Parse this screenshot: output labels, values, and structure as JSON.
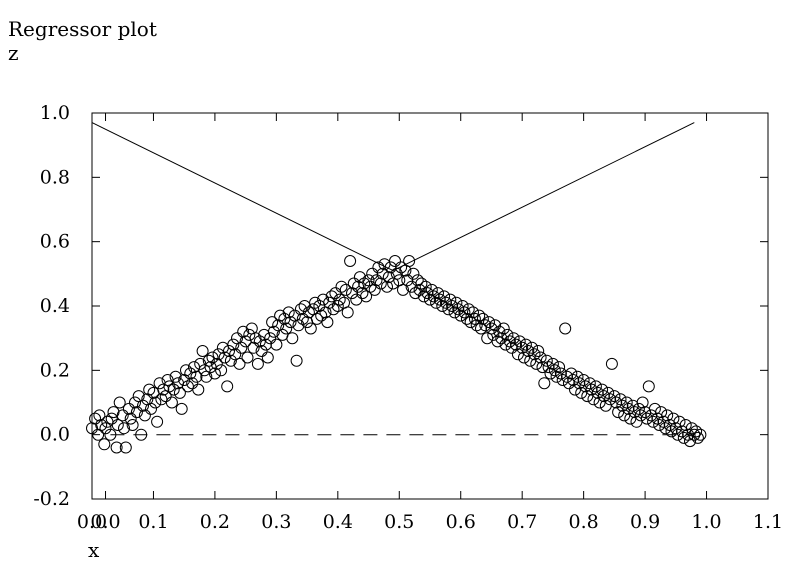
{
  "chart_data": {
    "type": "scatter",
    "title": "Regressor plot",
    "ylabel": "z",
    "xlabel": "x",
    "xlim": [
      -0.0,
      1.1
    ],
    "ylim": [
      -0.2,
      1.0
    ],
    "x_tick_labels": [
      "0.0",
      "0.0",
      "0.1",
      "0.2",
      "0.3",
      "0.4",
      "0.5",
      "0.6",
      "0.7",
      "0.8",
      "0.9",
      "1.0",
      "1.1"
    ],
    "y_tick_labels": [
      "1.0",
      "0.8",
      "0.6",
      "0.4",
      "0.2",
      "0.0",
      "-0.2"
    ],
    "grid": false,
    "lines": [
      {
        "style": "solid",
        "points": [
          [
            0.0,
            0.97
          ],
          [
            0.49,
            0.51
          ],
          [
            0.98,
            0.97
          ]
        ]
      },
      {
        "style": "dashed",
        "points": [
          [
            0.03,
            0.0
          ],
          [
            0.98,
            0.0
          ]
        ]
      }
    ],
    "scatter_description": "Dense cloud of open circles following an inverted-V from (0,0) up to about (0.48,0.48) and back down to (0.98,0.0)",
    "points": [
      [
        0.0,
        0.02
      ],
      [
        0.005,
        0.05
      ],
      [
        0.01,
        0.0
      ],
      [
        0.012,
        0.06
      ],
      [
        0.015,
        0.03
      ],
      [
        0.02,
        -0.03
      ],
      [
        0.022,
        0.02
      ],
      [
        0.025,
        0.04
      ],
      [
        0.03,
        0.0
      ],
      [
        0.032,
        0.05
      ],
      [
        0.035,
        0.07
      ],
      [
        0.04,
        -0.04
      ],
      [
        0.042,
        0.03
      ],
      [
        0.045,
        0.1
      ],
      [
        0.05,
        0.06
      ],
      [
        0.052,
        0.02
      ],
      [
        0.055,
        -0.04
      ],
      [
        0.06,
        0.08
      ],
      [
        0.063,
        0.05
      ],
      [
        0.066,
        0.03
      ],
      [
        0.07,
        0.1
      ],
      [
        0.073,
        0.07
      ],
      [
        0.076,
        0.12
      ],
      [
        0.08,
        0.0
      ],
      [
        0.083,
        0.09
      ],
      [
        0.086,
        0.06
      ],
      [
        0.09,
        0.11
      ],
      [
        0.093,
        0.14
      ],
      [
        0.096,
        0.08
      ],
      [
        0.1,
        0.13
      ],
      [
        0.103,
        0.1
      ],
      [
        0.106,
        0.04
      ],
      [
        0.11,
        0.16
      ],
      [
        0.113,
        0.11
      ],
      [
        0.116,
        0.14
      ],
      [
        0.12,
        0.12
      ],
      [
        0.123,
        0.17
      ],
      [
        0.126,
        0.15
      ],
      [
        0.13,
        0.1
      ],
      [
        0.133,
        0.14
      ],
      [
        0.136,
        0.18
      ],
      [
        0.14,
        0.16
      ],
      [
        0.143,
        0.13
      ],
      [
        0.146,
        0.08
      ],
      [
        0.15,
        0.17
      ],
      [
        0.153,
        0.2
      ],
      [
        0.156,
        0.15
      ],
      [
        0.16,
        0.19
      ],
      [
        0.163,
        0.16
      ],
      [
        0.166,
        0.21
      ],
      [
        0.17,
        0.18
      ],
      [
        0.173,
        0.14
      ],
      [
        0.176,
        0.22
      ],
      [
        0.18,
        0.26
      ],
      [
        0.183,
        0.2
      ],
      [
        0.186,
        0.18
      ],
      [
        0.19,
        0.23
      ],
      [
        0.193,
        0.21
      ],
      [
        0.196,
        0.24
      ],
      [
        0.2,
        0.19
      ],
      [
        0.203,
        0.22
      ],
      [
        0.206,
        0.25
      ],
      [
        0.21,
        0.2
      ],
      [
        0.213,
        0.27
      ],
      [
        0.216,
        0.24
      ],
      [
        0.22,
        0.15
      ],
      [
        0.223,
        0.26
      ],
      [
        0.226,
        0.23
      ],
      [
        0.23,
        0.28
      ],
      [
        0.233,
        0.25
      ],
      [
        0.236,
        0.3
      ],
      [
        0.24,
        0.22
      ],
      [
        0.243,
        0.27
      ],
      [
        0.246,
        0.32
      ],
      [
        0.25,
        0.29
      ],
      [
        0.253,
        0.24
      ],
      [
        0.256,
        0.31
      ],
      [
        0.26,
        0.33
      ],
      [
        0.263,
        0.27
      ],
      [
        0.266,
        0.3
      ],
      [
        0.27,
        0.22
      ],
      [
        0.273,
        0.29
      ],
      [
        0.276,
        0.26
      ],
      [
        0.28,
        0.31
      ],
      [
        0.283,
        0.28
      ],
      [
        0.286,
        0.24
      ],
      [
        0.29,
        0.3
      ],
      [
        0.293,
        0.35
      ],
      [
        0.296,
        0.32
      ],
      [
        0.3,
        0.28
      ],
      [
        0.303,
        0.34
      ],
      [
        0.306,
        0.37
      ],
      [
        0.31,
        0.31
      ],
      [
        0.313,
        0.36
      ],
      [
        0.316,
        0.33
      ],
      [
        0.32,
        0.38
      ],
      [
        0.323,
        0.35
      ],
      [
        0.326,
        0.3
      ],
      [
        0.33,
        0.37
      ],
      [
        0.333,
        0.23
      ],
      [
        0.336,
        0.34
      ],
      [
        0.34,
        0.39
      ],
      [
        0.343,
        0.36
      ],
      [
        0.346,
        0.4
      ],
      [
        0.35,
        0.35
      ],
      [
        0.353,
        0.38
      ],
      [
        0.356,
        0.33
      ],
      [
        0.36,
        0.39
      ],
      [
        0.363,
        0.41
      ],
      [
        0.366,
        0.36
      ],
      [
        0.37,
        0.4
      ],
      [
        0.373,
        0.37
      ],
      [
        0.376,
        0.42
      ],
      [
        0.38,
        0.38
      ],
      [
        0.383,
        0.35
      ],
      [
        0.386,
        0.41
      ],
      [
        0.39,
        0.43
      ],
      [
        0.393,
        0.39
      ],
      [
        0.396,
        0.44
      ],
      [
        0.4,
        0.4
      ],
      [
        0.403,
        0.42
      ],
      [
        0.406,
        0.46
      ],
      [
        0.41,
        0.41
      ],
      [
        0.413,
        0.45
      ],
      [
        0.416,
        0.38
      ],
      [
        0.42,
        0.54
      ],
      [
        0.423,
        0.44
      ],
      [
        0.426,
        0.47
      ],
      [
        0.43,
        0.42
      ],
      [
        0.433,
        0.46
      ],
      [
        0.436,
        0.49
      ],
      [
        0.44,
        0.44
      ],
      [
        0.443,
        0.47
      ],
      [
        0.446,
        0.43
      ],
      [
        0.45,
        0.48
      ],
      [
        0.453,
        0.46
      ],
      [
        0.456,
        0.5
      ],
      [
        0.46,
        0.45
      ],
      [
        0.463,
        0.48
      ],
      [
        0.466,
        0.52
      ],
      [
        0.47,
        0.47
      ],
      [
        0.473,
        0.5
      ],
      [
        0.476,
        0.53
      ],
      [
        0.48,
        0.46
      ],
      [
        0.483,
        0.49
      ],
      [
        0.486,
        0.52
      ],
      [
        0.49,
        0.47
      ],
      [
        0.493,
        0.54
      ],
      [
        0.496,
        0.5
      ],
      [
        0.5,
        0.48
      ],
      [
        0.503,
        0.52
      ],
      [
        0.506,
        0.45
      ],
      [
        0.51,
        0.51
      ],
      [
        0.513,
        0.48
      ],
      [
        0.516,
        0.54
      ],
      [
        0.52,
        0.46
      ],
      [
        0.523,
        0.5
      ],
      [
        0.526,
        0.44
      ],
      [
        0.53,
        0.48
      ],
      [
        0.533,
        0.45
      ],
      [
        0.536,
        0.47
      ],
      [
        0.54,
        0.43
      ],
      [
        0.543,
        0.46
      ],
      [
        0.546,
        0.44
      ],
      [
        0.55,
        0.42
      ],
      [
        0.553,
        0.45
      ],
      [
        0.556,
        0.43
      ],
      [
        0.56,
        0.41
      ],
      [
        0.563,
        0.44
      ],
      [
        0.566,
        0.42
      ],
      [
        0.57,
        0.4
      ],
      [
        0.573,
        0.43
      ],
      [
        0.576,
        0.41
      ],
      [
        0.58,
        0.39
      ],
      [
        0.583,
        0.42
      ],
      [
        0.586,
        0.4
      ],
      [
        0.59,
        0.38
      ],
      [
        0.593,
        0.41
      ],
      [
        0.596,
        0.39
      ],
      [
        0.6,
        0.37
      ],
      [
        0.603,
        0.4
      ],
      [
        0.606,
        0.38
      ],
      [
        0.61,
        0.36
      ],
      [
        0.613,
        0.39
      ],
      [
        0.616,
        0.35
      ],
      [
        0.62,
        0.38
      ],
      [
        0.623,
        0.36
      ],
      [
        0.626,
        0.34
      ],
      [
        0.63,
        0.37
      ],
      [
        0.633,
        0.33
      ],
      [
        0.636,
        0.36
      ],
      [
        0.64,
        0.34
      ],
      [
        0.643,
        0.3
      ],
      [
        0.646,
        0.35
      ],
      [
        0.65,
        0.33
      ],
      [
        0.653,
        0.31
      ],
      [
        0.656,
        0.34
      ],
      [
        0.66,
        0.29
      ],
      [
        0.663,
        0.32
      ],
      [
        0.666,
        0.3
      ],
      [
        0.67,
        0.33
      ],
      [
        0.673,
        0.28
      ],
      [
        0.676,
        0.31
      ],
      [
        0.68,
        0.29
      ],
      [
        0.683,
        0.27
      ],
      [
        0.686,
        0.3
      ],
      [
        0.69,
        0.28
      ],
      [
        0.693,
        0.25
      ],
      [
        0.696,
        0.29
      ],
      [
        0.7,
        0.27
      ],
      [
        0.703,
        0.24
      ],
      [
        0.706,
        0.28
      ],
      [
        0.71,
        0.26
      ],
      [
        0.713,
        0.23
      ],
      [
        0.716,
        0.27
      ],
      [
        0.72,
        0.25
      ],
      [
        0.723,
        0.22
      ],
      [
        0.726,
        0.26
      ],
      [
        0.73,
        0.24
      ],
      [
        0.733,
        0.21
      ],
      [
        0.736,
        0.16
      ],
      [
        0.74,
        0.23
      ],
      [
        0.743,
        0.21
      ],
      [
        0.746,
        0.19
      ],
      [
        0.75,
        0.22
      ],
      [
        0.753,
        0.2
      ],
      [
        0.756,
        0.18
      ],
      [
        0.76,
        0.21
      ],
      [
        0.763,
        0.19
      ],
      [
        0.766,
        0.17
      ],
      [
        0.77,
        0.33
      ],
      [
        0.773,
        0.18
      ],
      [
        0.776,
        0.16
      ],
      [
        0.78,
        0.19
      ],
      [
        0.783,
        0.17
      ],
      [
        0.786,
        0.14
      ],
      [
        0.79,
        0.18
      ],
      [
        0.793,
        0.16
      ],
      [
        0.796,
        0.13
      ],
      [
        0.8,
        0.17
      ],
      [
        0.803,
        0.15
      ],
      [
        0.806,
        0.12
      ],
      [
        0.81,
        0.16
      ],
      [
        0.813,
        0.14
      ],
      [
        0.816,
        0.11
      ],
      [
        0.82,
        0.15
      ],
      [
        0.823,
        0.13
      ],
      [
        0.826,
        0.1
      ],
      [
        0.83,
        0.14
      ],
      [
        0.833,
        0.12
      ],
      [
        0.836,
        0.09
      ],
      [
        0.84,
        0.13
      ],
      [
        0.843,
        0.11
      ],
      [
        0.846,
        0.22
      ],
      [
        0.85,
        0.12
      ],
      [
        0.853,
        0.1
      ],
      [
        0.856,
        0.07
      ],
      [
        0.86,
        0.11
      ],
      [
        0.863,
        0.09
      ],
      [
        0.866,
        0.06
      ],
      [
        0.87,
        0.1
      ],
      [
        0.873,
        0.08
      ],
      [
        0.876,
        0.05
      ],
      [
        0.88,
        0.09
      ],
      [
        0.883,
        0.07
      ],
      [
        0.886,
        0.04
      ],
      [
        0.89,
        0.08
      ],
      [
        0.893,
        0.06
      ],
      [
        0.896,
        0.1
      ],
      [
        0.9,
        0.07
      ],
      [
        0.903,
        0.05
      ],
      [
        0.906,
        0.15
      ],
      [
        0.91,
        0.06
      ],
      [
        0.913,
        0.04
      ],
      [
        0.916,
        0.08
      ],
      [
        0.92,
        0.05
      ],
      [
        0.923,
        0.03
      ],
      [
        0.926,
        0.07
      ],
      [
        0.93,
        0.04
      ],
      [
        0.933,
        0.02
      ],
      [
        0.936,
        0.06
      ],
      [
        0.94,
        0.03
      ],
      [
        0.943,
        0.01
      ],
      [
        0.946,
        0.05
      ],
      [
        0.95,
        0.02
      ],
      [
        0.953,
        0.0
      ],
      [
        0.956,
        0.04
      ],
      [
        0.96,
        0.01
      ],
      [
        0.963,
        -0.01
      ],
      [
        0.966,
        0.03
      ],
      [
        0.97,
        0.0
      ],
      [
        0.973,
        -0.02
      ],
      [
        0.976,
        0.02
      ],
      [
        0.98,
        0.0
      ],
      [
        0.983,
        0.01
      ],
      [
        0.986,
        -0.01
      ],
      [
        0.99,
        0.0
      ]
    ]
  }
}
